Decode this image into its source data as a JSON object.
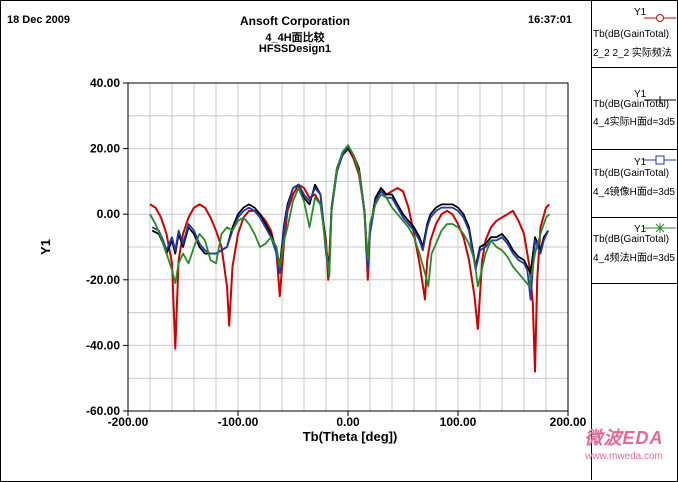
{
  "header": {
    "date": "18 Dec 2009",
    "company": "Ansoft Corporation",
    "plot_title": "4_4H面比较",
    "design": "HFSSDesign1",
    "time": "16:37:01"
  },
  "legend": [
    {
      "trace": "Y1",
      "line1": "Tb(dB(GainTotal)",
      "line2": "2_2 2_2 实际频法",
      "color": "#cc0000",
      "marker": "circle"
    },
    {
      "trace": "Y1",
      "line1": "Tb(dB(GainTotal)",
      "line2": "4_4实际H面d=3d5",
      "color": "#000000",
      "marker": "plus"
    },
    {
      "trace": "Y1",
      "line1": "Tb(dB(GainTotal)",
      "line2": "4_4镜像H面d=3d5",
      "color": "#1f3aa8",
      "marker": "square"
    },
    {
      "trace": "Y1",
      "line1": "Tb(dB(GainTotal)",
      "line2": "4_4频法H面d=3d5",
      "color": "#2a8a2a",
      "marker": "star"
    }
  ],
  "watermark": {
    "brand": "微波EDA",
    "url": "www.mweda.com"
  },
  "chart_data": {
    "type": "line",
    "title": "4_4H面比较",
    "xlabel": "Tb(Theta [deg])",
    "ylabel": "Y1",
    "xlim": [
      -200,
      200
    ],
    "ylim": [
      -60,
      40
    ],
    "xticks": [
      -200,
      -100,
      0,
      100,
      200
    ],
    "yticks": [
      40,
      20,
      0,
      -20,
      -40,
      -60
    ],
    "xtick_labels": [
      "-200.00",
      "-100.00",
      "0.00",
      "100.00",
      "200.00"
    ],
    "ytick_labels": [
      "40.00",
      "20.00",
      "0.00",
      "-20.00",
      "-40.00",
      "-60.00"
    ],
    "grid": true,
    "legend_position": "right",
    "series": [
      {
        "name": "2_2 2_2 实际频法",
        "color": "#cc0000",
        "x": [
          -180,
          -175,
          -170,
          -165,
          -160,
          -157,
          -154,
          -150,
          -145,
          -140,
          -135,
          -130,
          -125,
          -120,
          -115,
          -110,
          -108,
          -105,
          -100,
          -95,
          -90,
          -85,
          -80,
          -75,
          -70,
          -65,
          -62,
          -58,
          -55,
          -50,
          -45,
          -40,
          -35,
          -30,
          -25,
          -20,
          -18,
          -15,
          -10,
          -5,
          0,
          5,
          10,
          15,
          18,
          20,
          25,
          30,
          35,
          40,
          45,
          50,
          55,
          60,
          65,
          70,
          72,
          75,
          80,
          85,
          90,
          95,
          100,
          105,
          110,
          115,
          118,
          122,
          125,
          130,
          135,
          140,
          145,
          150,
          155,
          160,
          165,
          168,
          170,
          172,
          175,
          180,
          183
        ],
        "y": [
          3,
          2,
          -1,
          -6,
          -15,
          -41,
          -14,
          -6,
          -1,
          2,
          3,
          2,
          -1,
          -5,
          -10,
          -22,
          -34,
          -16,
          -6,
          -1,
          1,
          1,
          0,
          -2,
          -5,
          -12,
          -25,
          -8,
          1,
          6,
          9,
          8,
          5,
          6,
          3,
          -8,
          -20,
          1,
          14,
          18,
          20,
          17,
          12,
          1,
          -20,
          -5,
          5,
          7,
          6,
          7,
          8,
          7,
          2,
          -6,
          -15,
          -26,
          -14,
          -8,
          -3,
          0,
          1,
          0,
          -3,
          -7,
          -14,
          -25,
          -35,
          -14,
          -8,
          -4,
          -2,
          -1,
          0,
          1,
          -2,
          -6,
          -16,
          -27,
          -48,
          -20,
          -4,
          2,
          3
        ]
      },
      {
        "name": "4_4实际H面d=3d5",
        "color": "#000000",
        "x": [
          -178,
          -172,
          -168,
          -165,
          -160,
          -157,
          -154,
          -150,
          -145,
          -140,
          -135,
          -130,
          -125,
          -120,
          -115,
          -110,
          -105,
          -100,
          -95,
          -90,
          -85,
          -80,
          -75,
          -70,
          -65,
          -62,
          -58,
          -55,
          -50,
          -45,
          -40,
          -35,
          -30,
          -25,
          -20,
          -17,
          -15,
          -10,
          -5,
          0,
          5,
          10,
          15,
          18,
          20,
          25,
          30,
          35,
          40,
          45,
          50,
          55,
          60,
          65,
          68,
          72,
          75,
          80,
          85,
          90,
          95,
          100,
          105,
          110,
          113,
          116,
          120,
          125,
          130,
          135,
          140,
          145,
          150,
          155,
          160,
          163,
          166,
          170,
          175,
          178,
          182
        ],
        "y": [
          -5,
          -6,
          -9,
          -12,
          -8,
          -12,
          -6,
          -10,
          -4,
          -6,
          -10,
          -12,
          -12,
          -12,
          -11,
          -10,
          -4,
          0,
          2,
          3,
          2,
          0,
          -3,
          -6,
          -11,
          -16,
          -3,
          3,
          8,
          9,
          5,
          3,
          9,
          6,
          -10,
          -17,
          2,
          14,
          18,
          20,
          18,
          14,
          1,
          -15,
          -5,
          5,
          8,
          6,
          6,
          3,
          0,
          -2,
          -4,
          -7,
          -10,
          -3,
          0,
          2,
          3,
          3,
          3,
          2,
          0,
          -4,
          -10,
          -16,
          -10,
          -9,
          -7,
          -7,
          -6,
          -8,
          -11,
          -13,
          -14,
          -16,
          -18,
          -7,
          -11,
          -7,
          -5
        ]
      },
      {
        "name": "4_4镜像H面d=3d5",
        "color": "#1f3aa8",
        "x": [
          -178,
          -172,
          -168,
          -165,
          -160,
          -157,
          -154,
          -150,
          -145,
          -140,
          -135,
          -130,
          -125,
          -120,
          -115,
          -110,
          -105,
          -100,
          -95,
          -90,
          -85,
          -80,
          -75,
          -70,
          -65,
          -62,
          -58,
          -55,
          -50,
          -45,
          -40,
          -35,
          -30,
          -25,
          -20,
          -17,
          -15,
          -10,
          -5,
          0,
          5,
          10,
          15,
          18,
          20,
          25,
          30,
          35,
          40,
          45,
          50,
          55,
          60,
          65,
          68,
          72,
          75,
          80,
          85,
          90,
          95,
          100,
          105,
          110,
          113,
          116,
          120,
          125,
          130,
          135,
          140,
          145,
          150,
          155,
          160,
          163,
          166,
          170,
          175,
          178,
          182
        ],
        "y": [
          -4,
          -5,
          -8,
          -11,
          -7,
          -11,
          -5,
          -9,
          -3,
          -5,
          -9,
          -11,
          -12,
          -12,
          -11,
          -10,
          -5,
          -1,
          1,
          2,
          1,
          -1,
          -4,
          -7,
          -12,
          -18,
          -4,
          2,
          8,
          9,
          6,
          4,
          8,
          6,
          -12,
          -18,
          1,
          13,
          18,
          21,
          18,
          13,
          0,
          -17,
          -6,
          4,
          7,
          5,
          5,
          2,
          -1,
          -3,
          -5,
          -8,
          -11,
          -4,
          -1,
          1,
          2,
          2,
          2,
          1,
          -1,
          -5,
          -11,
          -17,
          -11,
          -10,
          -8,
          -8,
          -7,
          -9,
          -12,
          -14,
          -15,
          -17,
          -26,
          -8,
          -12,
          -8,
          -5
        ]
      },
      {
        "name": "4_4频法H面d=3d5",
        "color": "#2a8a2a",
        "x": [
          -180,
          -175,
          -170,
          -165,
          -160,
          -157,
          -154,
          -150,
          -145,
          -140,
          -135,
          -130,
          -125,
          -120,
          -115,
          -110,
          -105,
          -100,
          -95,
          -90,
          -85,
          -80,
          -75,
          -70,
          -65,
          -62,
          -58,
          -55,
          -50,
          -45,
          -40,
          -35,
          -30,
          -25,
          -20,
          -17,
          -15,
          -10,
          -5,
          0,
          5,
          10,
          15,
          18,
          20,
          25,
          30,
          35,
          40,
          45,
          50,
          55,
          60,
          65,
          70,
          73,
          76,
          80,
          85,
          90,
          95,
          100,
          105,
          110,
          115,
          118,
          121,
          125,
          130,
          135,
          140,
          145,
          150,
          155,
          160,
          165,
          170,
          175,
          180,
          183
        ],
        "y": [
          0,
          -3,
          -7,
          -12,
          -17,
          -21,
          -15,
          -12,
          -15,
          -10,
          -6,
          -8,
          -14,
          -15,
          -6,
          -4,
          -5,
          -2,
          -1,
          -3,
          -6,
          -10,
          -9,
          -7,
          -10,
          -16,
          -8,
          -4,
          4,
          8,
          4,
          -4,
          5,
          3,
          -10,
          -19,
          1,
          14,
          19,
          21,
          18,
          13,
          1,
          -14,
          -3,
          3,
          6,
          5,
          2,
          0,
          -2,
          -4,
          -7,
          -12,
          -18,
          -22,
          -12,
          -9,
          -5,
          -3,
          -3,
          -4,
          -6,
          -9,
          -14,
          -22,
          -18,
          -12,
          -8,
          -10,
          -11,
          -13,
          -16,
          -18,
          -20,
          -22,
          -12,
          -6,
          -1,
          0
        ]
      }
    ]
  }
}
